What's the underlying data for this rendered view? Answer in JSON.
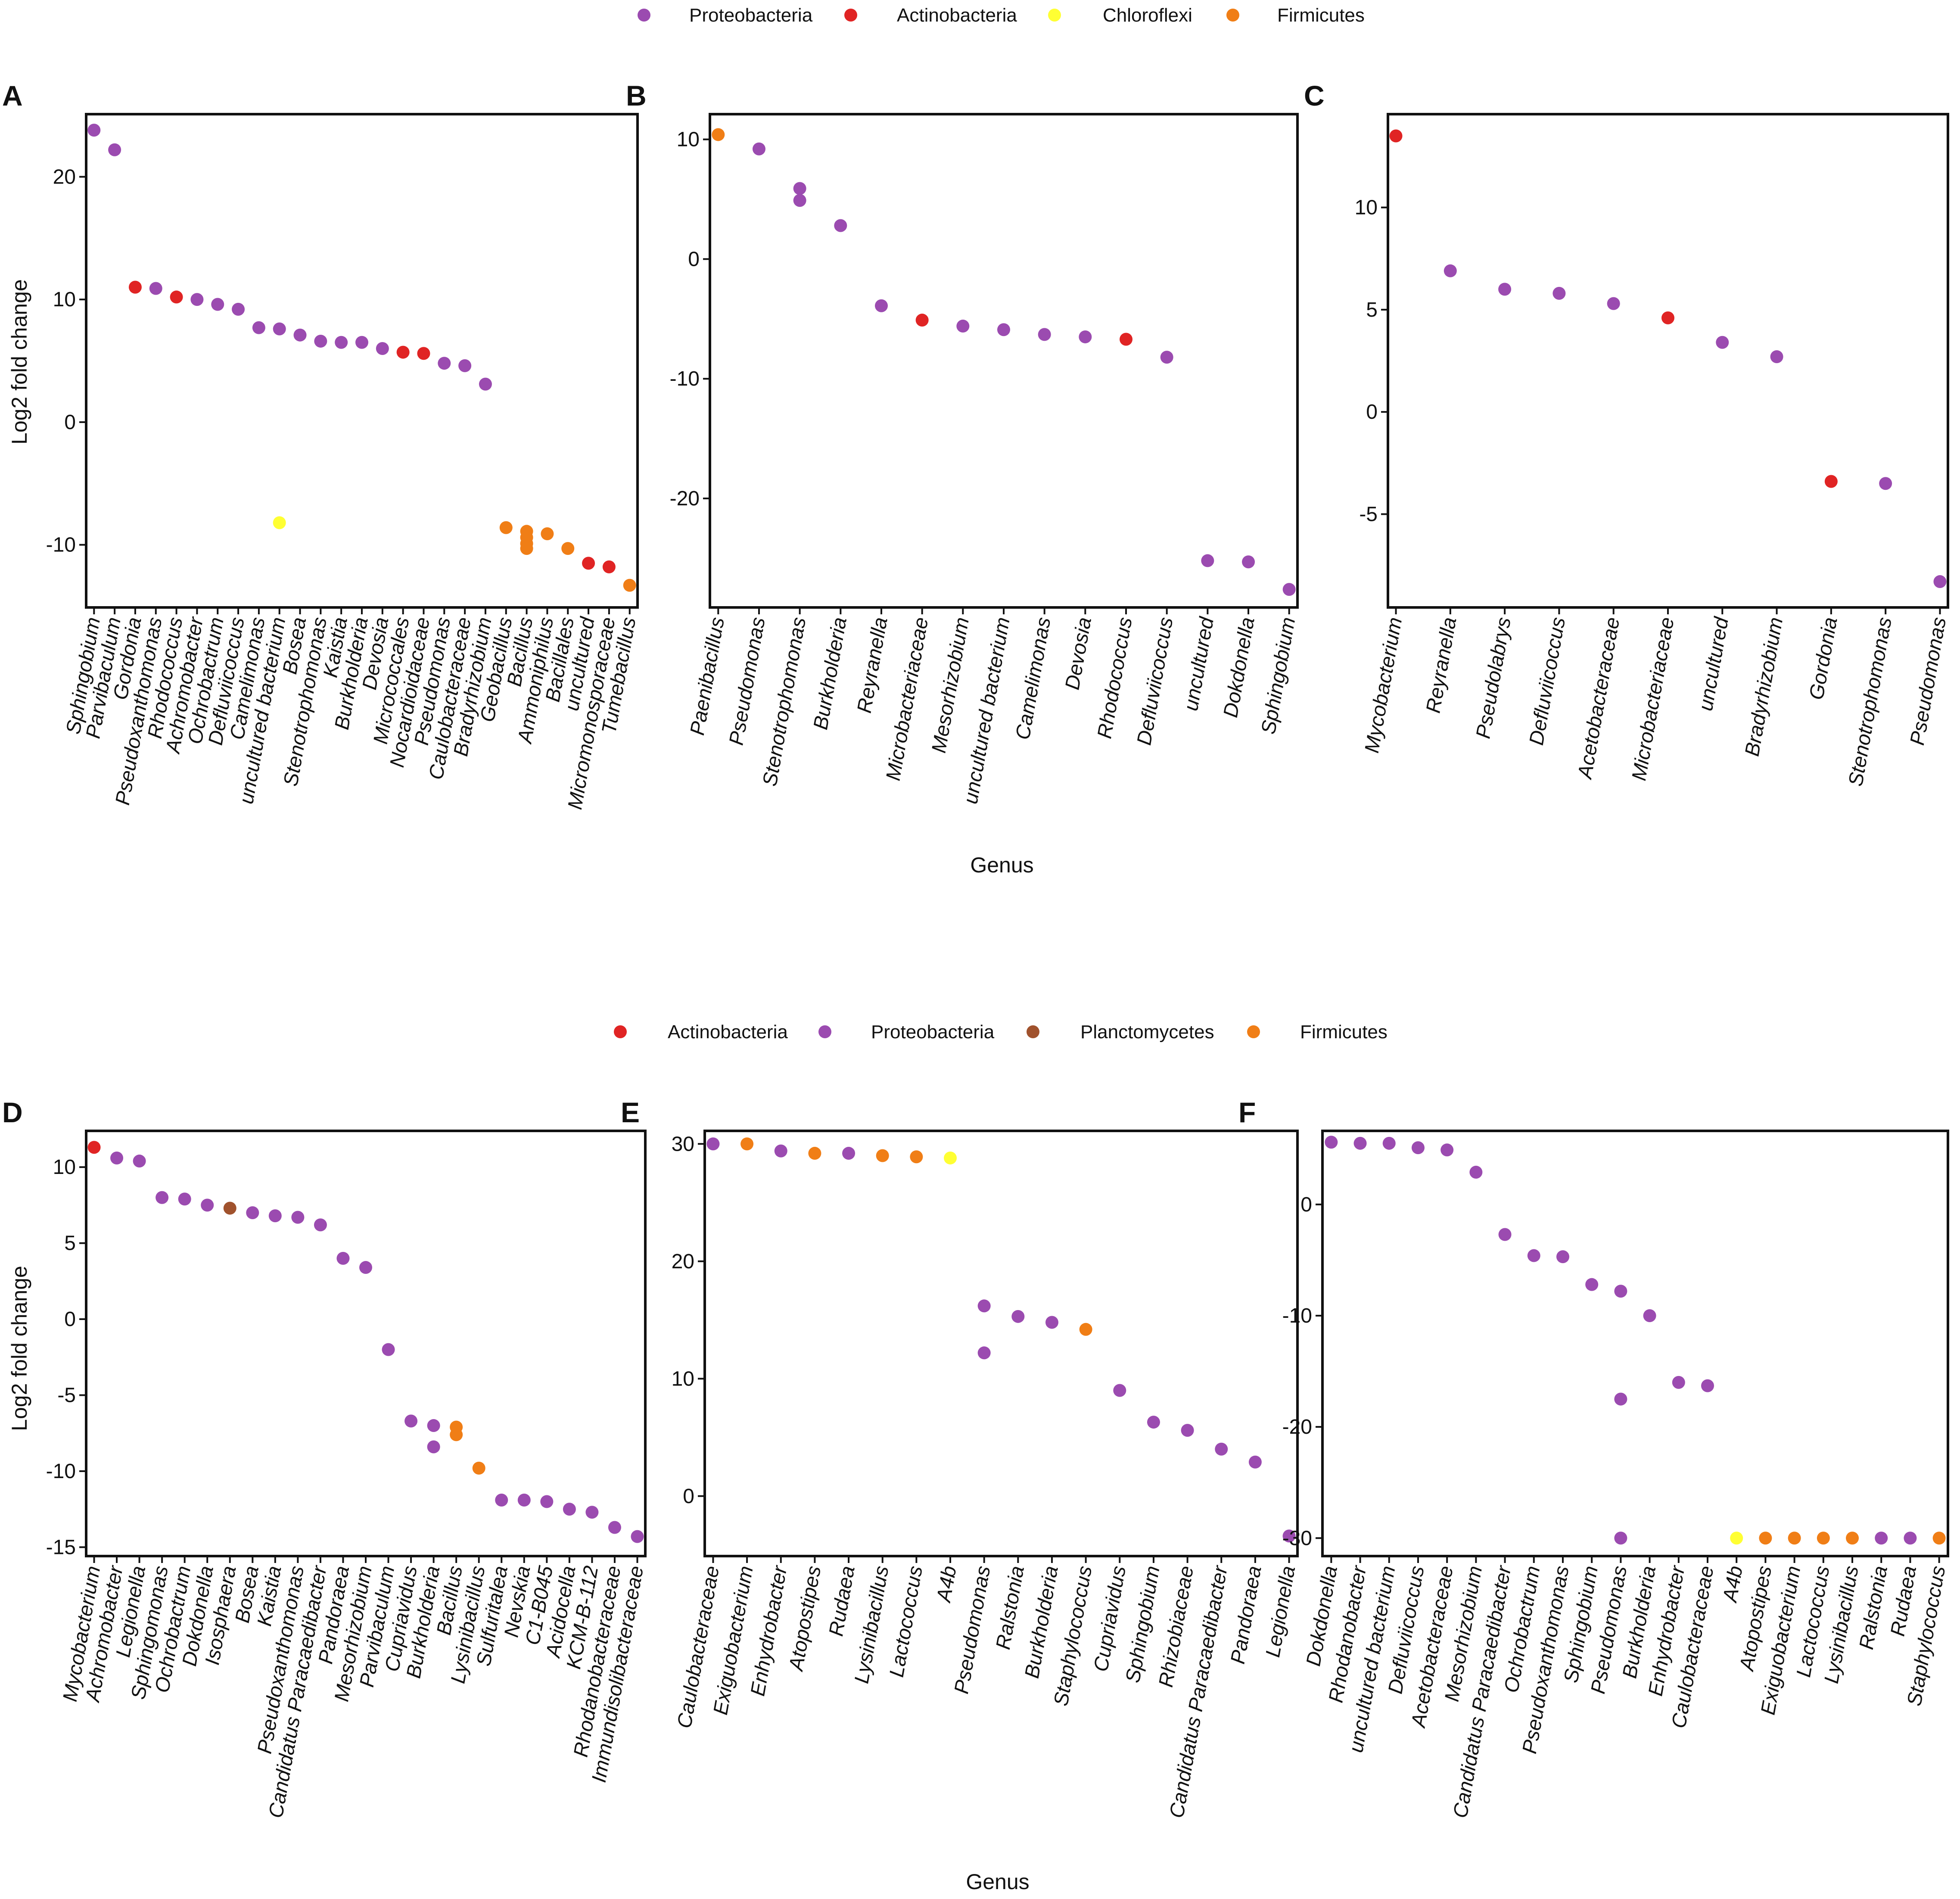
{
  "colors": {
    "Proteobacteria": "#9b4bb0",
    "Actinobacteria": "#e02424",
    "Chloroflexi": "#ffff33",
    "Firmicutes": "#f07e16",
    "Planctomycetes": "#a0522d"
  },
  "legends": [
    {
      "items": [
        "Proteobacteria",
        "Actinobacteria",
        "Chloroflexi",
        "Firmicutes"
      ]
    },
    {
      "items": [
        "Actinobacteria",
        "Proteobacteria",
        "Planctomycetes",
        "Firmicutes"
      ]
    }
  ],
  "axis_titles": {
    "y_top": "Log2 fold change",
    "y_bottom": "Log2 fold change",
    "x_top": "Genus",
    "x_bottom": "Genus"
  },
  "chart_data": [
    {
      "type": "scatter",
      "panel": "A",
      "title": "",
      "xlabel": "",
      "ylabel": "Log2 fold change",
      "ylim": [
        -15,
        25
      ],
      "yticks": [
        -10,
        0,
        10,
        20
      ],
      "categories": [
        "Sphingobium",
        "Parvibaculum",
        "Gordonia",
        "Pseudoxanthomonas",
        "Rhodococcus",
        "Achromobacter",
        "Ochrobactrum",
        "Defluviicoccus",
        "Camelimonas",
        "uncultured bacterium",
        "Bosea",
        "Stenotrophomonas",
        "Kaistia",
        "Burkholderia",
        "Devosia",
        "Micrococcales",
        "Nocardioidaceae",
        "Pseudomonas",
        "Caulobacteraceae",
        "Bradyrhizobium",
        "Geobacillus",
        "Bacillus",
        "Ammoniphilus",
        "Bacillales",
        "uncultured",
        "Micromonosporaceae",
        "Tumebacillus"
      ],
      "points": [
        {
          "x": "Sphingobium",
          "y": 23.8,
          "phylum": "Proteobacteria"
        },
        {
          "x": "Parvibaculum",
          "y": 22.2,
          "phylum": "Proteobacteria"
        },
        {
          "x": "Gordonia",
          "y": 11.0,
          "phylum": "Actinobacteria"
        },
        {
          "x": "Pseudoxanthomonas",
          "y": 10.9,
          "phylum": "Proteobacteria"
        },
        {
          "x": "Rhodococcus",
          "y": 10.2,
          "phylum": "Actinobacteria"
        },
        {
          "x": "Achromobacter",
          "y": 10.0,
          "phylum": "Proteobacteria"
        },
        {
          "x": "Ochrobactrum",
          "y": 9.6,
          "phylum": "Proteobacteria"
        },
        {
          "x": "Defluviicoccus",
          "y": 9.2,
          "phylum": "Proteobacteria"
        },
        {
          "x": "Camelimonas",
          "y": 7.7,
          "phylum": "Proteobacteria"
        },
        {
          "x": "uncultured bacterium",
          "y": 7.6,
          "phylum": "Proteobacteria"
        },
        {
          "x": "uncultured bacterium",
          "y": -8.2,
          "phylum": "Chloroflexi"
        },
        {
          "x": "Bosea",
          "y": 7.1,
          "phylum": "Proteobacteria"
        },
        {
          "x": "Stenotrophomonas",
          "y": 6.6,
          "phylum": "Proteobacteria"
        },
        {
          "x": "Kaistia",
          "y": 6.5,
          "phylum": "Proteobacteria"
        },
        {
          "x": "Burkholderia",
          "y": 6.5,
          "phylum": "Proteobacteria"
        },
        {
          "x": "Devosia",
          "y": 6.0,
          "phylum": "Proteobacteria"
        },
        {
          "x": "Micrococcales",
          "y": 5.7,
          "phylum": "Actinobacteria"
        },
        {
          "x": "Nocardioidaceae",
          "y": 5.6,
          "phylum": "Actinobacteria"
        },
        {
          "x": "Pseudomonas",
          "y": 4.8,
          "phylum": "Proteobacteria"
        },
        {
          "x": "Caulobacteraceae",
          "y": 4.6,
          "phylum": "Proteobacteria"
        },
        {
          "x": "Bradyrhizobium",
          "y": 3.1,
          "phylum": "Proteobacteria"
        },
        {
          "x": "Geobacillus",
          "y": -8.6,
          "phylum": "Firmicutes"
        },
        {
          "x": "Bacillus",
          "y": -8.9,
          "phylum": "Firmicutes"
        },
        {
          "x": "Bacillus",
          "y": -9.4,
          "phylum": "Firmicutes"
        },
        {
          "x": "Bacillus",
          "y": -9.9,
          "phylum": "Firmicutes"
        },
        {
          "x": "Bacillus",
          "y": -10.3,
          "phylum": "Firmicutes"
        },
        {
          "x": "Ammoniphilus",
          "y": -9.1,
          "phylum": "Firmicutes"
        },
        {
          "x": "Bacillales",
          "y": -10.3,
          "phylum": "Firmicutes"
        },
        {
          "x": "uncultured",
          "y": -11.5,
          "phylum": "Actinobacteria"
        },
        {
          "x": "Micromonosporaceae",
          "y": -11.8,
          "phylum": "Actinobacteria"
        },
        {
          "x": "Tumebacillus",
          "y": -13.3,
          "phylum": "Firmicutes"
        }
      ]
    },
    {
      "type": "scatter",
      "panel": "B",
      "title": "",
      "xlabel": "Genus",
      "ylabel": "",
      "ylim": [
        -29,
        12
      ],
      "yticks": [
        -20,
        -10,
        0,
        10
      ],
      "categories": [
        "Paenibacillus",
        "Pseudomonas",
        "Stenotrophomonas",
        "Burkholderia",
        "Reyranella",
        "Microbacteriaceae",
        "Mesorhizobium",
        "uncultured bacterium",
        "Camelimonas",
        "Devosia",
        "Rhodococcus",
        "Defluviicoccus",
        "uncultured",
        "Dokdonella",
        "Sphingobium"
      ],
      "points": [
        {
          "x": "Paenibacillus",
          "y": 10.4,
          "phylum": "Firmicutes"
        },
        {
          "x": "Pseudomonas",
          "y": 9.2,
          "phylum": "Proteobacteria"
        },
        {
          "x": "Stenotrophomonas",
          "y": 5.9,
          "phylum": "Proteobacteria"
        },
        {
          "x": "Stenotrophomonas",
          "y": 4.9,
          "phylum": "Proteobacteria"
        },
        {
          "x": "Burkholderia",
          "y": 2.8,
          "phylum": "Proteobacteria"
        },
        {
          "x": "Reyranella",
          "y": -3.9,
          "phylum": "Proteobacteria"
        },
        {
          "x": "Microbacteriaceae",
          "y": -5.1,
          "phylum": "Actinobacteria"
        },
        {
          "x": "Mesorhizobium",
          "y": -5.6,
          "phylum": "Proteobacteria"
        },
        {
          "x": "uncultured bacterium",
          "y": -5.9,
          "phylum": "Proteobacteria"
        },
        {
          "x": "Camelimonas",
          "y": -6.3,
          "phylum": "Proteobacteria"
        },
        {
          "x": "Devosia",
          "y": -6.5,
          "phylum": "Proteobacteria"
        },
        {
          "x": "Rhodococcus",
          "y": -6.7,
          "phylum": "Actinobacteria"
        },
        {
          "x": "Defluviicoccus",
          "y": -8.2,
          "phylum": "Proteobacteria"
        },
        {
          "x": "uncultured",
          "y": -25.2,
          "phylum": "Proteobacteria"
        },
        {
          "x": "Dokdonella",
          "y": -25.3,
          "phylum": "Proteobacteria"
        },
        {
          "x": "Sphingobium",
          "y": -27.6,
          "phylum": "Proteobacteria"
        }
      ]
    },
    {
      "type": "scatter",
      "panel": "C",
      "title": "",
      "xlabel": "",
      "ylabel": "",
      "ylim": [
        -9.5,
        14.5
      ],
      "yticks": [
        -5,
        0,
        5,
        10
      ],
      "categories": [
        "Mycobacterium",
        "Reyranella",
        "Pseudolabrys",
        "Defluviicoccus",
        "Acetobacteraceae",
        "Microbacteriaceae",
        "uncultured",
        "Bradyrhizobium",
        "Gordonia",
        "Stenotrophomonas",
        "Pseudomonas"
      ],
      "points": [
        {
          "x": "Mycobacterium",
          "y": 13.5,
          "phylum": "Actinobacteria"
        },
        {
          "x": "Reyranella",
          "y": 6.9,
          "phylum": "Proteobacteria"
        },
        {
          "x": "Pseudolabrys",
          "y": 6.0,
          "phylum": "Proteobacteria"
        },
        {
          "x": "Defluviicoccus",
          "y": 5.8,
          "phylum": "Proteobacteria"
        },
        {
          "x": "Acetobacteraceae",
          "y": 5.3,
          "phylum": "Proteobacteria"
        },
        {
          "x": "Microbacteriaceae",
          "y": 4.6,
          "phylum": "Actinobacteria"
        },
        {
          "x": "uncultured",
          "y": 3.4,
          "phylum": "Proteobacteria"
        },
        {
          "x": "Bradyrhizobium",
          "y": 2.7,
          "phylum": "Proteobacteria"
        },
        {
          "x": "Gordonia",
          "y": -3.4,
          "phylum": "Actinobacteria"
        },
        {
          "x": "Stenotrophomonas",
          "y": -3.5,
          "phylum": "Proteobacteria"
        },
        {
          "x": "Pseudomonas",
          "y": -8.3,
          "phylum": "Proteobacteria"
        }
      ]
    },
    {
      "type": "scatter",
      "panel": "D",
      "title": "",
      "xlabel": "",
      "ylabel": "Log2 fold change",
      "ylim": [
        -15.5,
        12.3
      ],
      "yticks": [
        -15,
        -10,
        -5,
        0,
        5,
        10
      ],
      "categories": [
        "Mycobacterium",
        "Achromobacter",
        "Legionella",
        "Sphingomonas",
        "Ochrobactrum",
        "Dokdonella",
        "Isosphaera",
        "Bosea",
        "Kaistia",
        "Pseudoxanthomonas",
        "Candidatus Paracaedibacter",
        "Pandoraea",
        "Mesorhizobium",
        "Parvibaculum",
        "Cupriavidus",
        "Burkholderia",
        "Bacillus",
        "Lysinibacillus",
        "Sulfuritalea",
        "Nevskia",
        "C1-B045",
        "Acidocella",
        "KCM-B-112",
        "Rhodanobacteraceae",
        "Immundisolibacteraceae"
      ],
      "points": [
        {
          "x": "Mycobacterium",
          "y": 11.3,
          "phylum": "Actinobacteria"
        },
        {
          "x": "Achromobacter",
          "y": 10.6,
          "phylum": "Proteobacteria"
        },
        {
          "x": "Legionella",
          "y": 10.4,
          "phylum": "Proteobacteria"
        },
        {
          "x": "Sphingomonas",
          "y": 8.0,
          "phylum": "Proteobacteria"
        },
        {
          "x": "Ochrobactrum",
          "y": 7.9,
          "phylum": "Proteobacteria"
        },
        {
          "x": "Dokdonella",
          "y": 7.5,
          "phylum": "Proteobacteria"
        },
        {
          "x": "Isosphaera",
          "y": 7.3,
          "phylum": "Planctomycetes"
        },
        {
          "x": "Bosea",
          "y": 7.0,
          "phylum": "Proteobacteria"
        },
        {
          "x": "Kaistia",
          "y": 6.8,
          "phylum": "Proteobacteria"
        },
        {
          "x": "Pseudoxanthomonas",
          "y": 6.7,
          "phylum": "Proteobacteria"
        },
        {
          "x": "Candidatus Paracaedibacter",
          "y": 6.2,
          "phylum": "Proteobacteria"
        },
        {
          "x": "Pandoraea",
          "y": 4.0,
          "phylum": "Proteobacteria"
        },
        {
          "x": "Mesorhizobium",
          "y": 3.4,
          "phylum": "Proteobacteria"
        },
        {
          "x": "Parvibaculum",
          "y": -2.0,
          "phylum": "Proteobacteria"
        },
        {
          "x": "Cupriavidus",
          "y": -6.7,
          "phylum": "Proteobacteria"
        },
        {
          "x": "Burkholderia",
          "y": -7.0,
          "phylum": "Proteobacteria"
        },
        {
          "x": "Burkholderia",
          "y": -8.4,
          "phylum": "Proteobacteria"
        },
        {
          "x": "Bacillus",
          "y": -7.1,
          "phylum": "Firmicutes"
        },
        {
          "x": "Bacillus",
          "y": -7.6,
          "phylum": "Firmicutes"
        },
        {
          "x": "Lysinibacillus",
          "y": -9.8,
          "phylum": "Firmicutes"
        },
        {
          "x": "Sulfuritalea",
          "y": -11.9,
          "phylum": "Proteobacteria"
        },
        {
          "x": "Nevskia",
          "y": -11.9,
          "phylum": "Proteobacteria"
        },
        {
          "x": "C1-B045",
          "y": -12.0,
          "phylum": "Proteobacteria"
        },
        {
          "x": "Acidocella",
          "y": -12.5,
          "phylum": "Proteobacteria"
        },
        {
          "x": "KCM-B-112",
          "y": -12.7,
          "phylum": "Proteobacteria"
        },
        {
          "x": "Rhodanobacteraceae",
          "y": -13.7,
          "phylum": "Proteobacteria"
        },
        {
          "x": "Immundisolibacteraceae",
          "y": -14.3,
          "phylum": "Proteobacteria"
        }
      ]
    },
    {
      "type": "scatter",
      "panel": "E",
      "title": "",
      "xlabel": "Genus",
      "ylabel": "",
      "ylim": [
        -5,
        31
      ],
      "yticks": [
        0,
        10,
        20,
        30
      ],
      "categories": [
        "Caulobacteraceae",
        "Exiguobacterium",
        "Enhydrobacter",
        "Atopostipes",
        "Rudaea",
        "Lysinibacillus",
        "Lactococcus",
        "A4b",
        "Pseudomonas",
        "Ralstonia",
        "Burkholderia",
        "Staphylococcus",
        "Cupriavidus",
        "Sphingobium",
        "Rhizobiaceae",
        "Candidatus Paracaedibacter",
        "Pandoraea",
        "Legionella"
      ],
      "points": [
        {
          "x": "Caulobacteraceae",
          "y": 30.0,
          "phylum": "Proteobacteria"
        },
        {
          "x": "Exiguobacterium",
          "y": 30.0,
          "phylum": "Firmicutes"
        },
        {
          "x": "Enhydrobacter",
          "y": 29.4,
          "phylum": "Proteobacteria"
        },
        {
          "x": "Atopostipes",
          "y": 29.2,
          "phylum": "Firmicutes"
        },
        {
          "x": "Rudaea",
          "y": 29.2,
          "phylum": "Proteobacteria"
        },
        {
          "x": "Lysinibacillus",
          "y": 29.0,
          "phylum": "Firmicutes"
        },
        {
          "x": "Lactococcus",
          "y": 28.9,
          "phylum": "Firmicutes"
        },
        {
          "x": "A4b",
          "y": 28.8,
          "phylum": "Chloroflexi"
        },
        {
          "x": "Pseudomonas",
          "y": 16.2,
          "phylum": "Proteobacteria"
        },
        {
          "x": "Pseudomonas",
          "y": 12.2,
          "phylum": "Proteobacteria"
        },
        {
          "x": "Ralstonia",
          "y": 15.3,
          "phylum": "Proteobacteria"
        },
        {
          "x": "Burkholderia",
          "y": 14.8,
          "phylum": "Proteobacteria"
        },
        {
          "x": "Staphylococcus",
          "y": 14.2,
          "phylum": "Firmicutes"
        },
        {
          "x": "Cupriavidus",
          "y": 9.0,
          "phylum": "Proteobacteria"
        },
        {
          "x": "Sphingobium",
          "y": 6.3,
          "phylum": "Proteobacteria"
        },
        {
          "x": "Rhizobiaceae",
          "y": 5.6,
          "phylum": "Proteobacteria"
        },
        {
          "x": "Candidatus Paracaedibacter",
          "y": 4.0,
          "phylum": "Proteobacteria"
        },
        {
          "x": "Pandoraea",
          "y": 2.9,
          "phylum": "Proteobacteria"
        },
        {
          "x": "Legionella",
          "y": -3.4,
          "phylum": "Proteobacteria"
        }
      ]
    },
    {
      "type": "scatter",
      "panel": "F",
      "title": "",
      "xlabel": "",
      "ylabel": "",
      "ylim": [
        -31.5,
        6.5
      ],
      "yticks": [
        -30,
        -20,
        -10,
        0
      ],
      "categories": [
        "Dokdonella",
        "Rhodanobacter",
        "uncultured bacterium",
        "Defluviicoccus",
        "Acetobacteraceae",
        "Mesorhizobium",
        "Candidatus Paracaedibacter",
        "Ochrobactrum",
        "Pseudoxanthomonas",
        "Sphingobium",
        "Pseudomonas",
        "Burkholderia",
        "Enhydrobacter",
        "Caulobacteraceae",
        "A4b",
        "Atopostipes",
        "Exiguobacterium",
        "Lactococcus",
        "Lysinibacillus",
        "Ralstonia",
        "Rudaea",
        "Staphylococcus"
      ],
      "points": [
        {
          "x": "Dokdonella",
          "y": 5.6,
          "phylum": "Proteobacteria"
        },
        {
          "x": "Rhodanobacter",
          "y": 5.5,
          "phylum": "Proteobacteria"
        },
        {
          "x": "uncultured bacterium",
          "y": 5.5,
          "phylum": "Proteobacteria"
        },
        {
          "x": "Defluviicoccus",
          "y": 5.1,
          "phylum": "Proteobacteria"
        },
        {
          "x": "Acetobacteraceae",
          "y": 4.9,
          "phylum": "Proteobacteria"
        },
        {
          "x": "Mesorhizobium",
          "y": 2.9,
          "phylum": "Proteobacteria"
        },
        {
          "x": "Candidatus Paracaedibacter",
          "y": -2.7,
          "phylum": "Proteobacteria"
        },
        {
          "x": "Ochrobactrum",
          "y": -4.6,
          "phylum": "Proteobacteria"
        },
        {
          "x": "Pseudoxanthomonas",
          "y": -4.7,
          "phylum": "Proteobacteria"
        },
        {
          "x": "Sphingobium",
          "y": -7.2,
          "phylum": "Proteobacteria"
        },
        {
          "x": "Pseudomonas",
          "y": -7.8,
          "phylum": "Proteobacteria"
        },
        {
          "x": "Pseudomonas",
          "y": -17.5,
          "phylum": "Proteobacteria"
        },
        {
          "x": "Pseudomonas",
          "y": -30.0,
          "phylum": "Proteobacteria"
        },
        {
          "x": "Burkholderia",
          "y": -10.0,
          "phylum": "Proteobacteria"
        },
        {
          "x": "Enhydrobacter",
          "y": -16.0,
          "phylum": "Proteobacteria"
        },
        {
          "x": "Caulobacteraceae",
          "y": -16.3,
          "phylum": "Proteobacteria"
        },
        {
          "x": "A4b",
          "y": -30.0,
          "phylum": "Chloroflexi"
        },
        {
          "x": "Atopostipes",
          "y": -30.0,
          "phylum": "Firmicutes"
        },
        {
          "x": "Exiguobacterium",
          "y": -30.0,
          "phylum": "Firmicutes"
        },
        {
          "x": "Lactococcus",
          "y": -30.0,
          "phylum": "Firmicutes"
        },
        {
          "x": "Lysinibacillus",
          "y": -30.0,
          "phylum": "Firmicutes"
        },
        {
          "x": "Ralstonia",
          "y": -30.0,
          "phylum": "Proteobacteria"
        },
        {
          "x": "Rudaea",
          "y": -30.0,
          "phylum": "Proteobacteria"
        },
        {
          "x": "Staphylococcus",
          "y": -30.0,
          "phylum": "Firmicutes"
        }
      ]
    }
  ]
}
